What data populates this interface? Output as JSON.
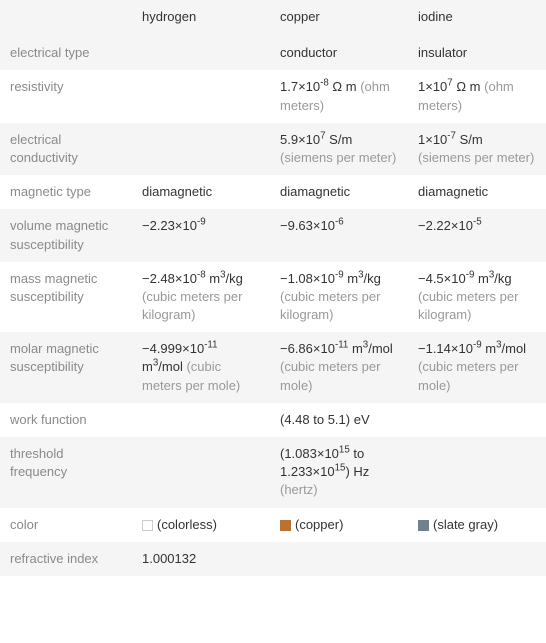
{
  "columns": [
    "",
    "hydrogen",
    "copper",
    "iodine"
  ],
  "rows": [
    {
      "label": "electrical type",
      "hydrogen": {
        "value": "",
        "unit": ""
      },
      "copper": {
        "value": "conductor",
        "unit": ""
      },
      "iodine": {
        "value": "insulator",
        "unit": ""
      }
    },
    {
      "label": "resistivity",
      "hydrogen": {
        "value": "",
        "unit": ""
      },
      "copper": {
        "value": "1.7×10⁻⁸ Ω m",
        "unit": "(ohm meters)"
      },
      "iodine": {
        "value": "1×10⁷ Ω m",
        "unit": "(ohm meters)"
      }
    },
    {
      "label": "electrical conductivity",
      "hydrogen": {
        "value": "",
        "unit": ""
      },
      "copper": {
        "value": "5.9×10⁷ S/m",
        "unit": "(siemens per meter)"
      },
      "iodine": {
        "value": "1×10⁻⁷ S/m",
        "unit": "(siemens per meter)"
      }
    },
    {
      "label": "magnetic type",
      "hydrogen": {
        "value": "diamagnetic",
        "unit": ""
      },
      "copper": {
        "value": "diamagnetic",
        "unit": ""
      },
      "iodine": {
        "value": "diamagnetic",
        "unit": ""
      }
    },
    {
      "label": "volume magnetic susceptibility",
      "hydrogen": {
        "value": "−2.23×10⁻⁹",
        "unit": ""
      },
      "copper": {
        "value": "−9.63×10⁻⁶",
        "unit": ""
      },
      "iodine": {
        "value": "−2.22×10⁻⁵",
        "unit": ""
      }
    },
    {
      "label": "mass magnetic susceptibility",
      "hydrogen": {
        "value": "−2.48×10⁻⁸ m³/kg",
        "unit": "(cubic meters per kilogram)"
      },
      "copper": {
        "value": "−1.08×10⁻⁹ m³/kg",
        "unit": "(cubic meters per kilogram)"
      },
      "iodine": {
        "value": "−4.5×10⁻⁹ m³/kg",
        "unit": "(cubic meters per kilogram)"
      }
    },
    {
      "label": "molar magnetic susceptibility",
      "hydrogen": {
        "value": "−4.999×10⁻¹¹ m³/mol",
        "unit": "(cubic meters per mole)"
      },
      "copper": {
        "value": "−6.86×10⁻¹¹ m³/mol",
        "unit": "(cubic meters per mole)"
      },
      "iodine": {
        "value": "−1.14×10⁻⁹ m³/mol",
        "unit": "(cubic meters per mole)"
      }
    },
    {
      "label": "work function",
      "hydrogen": {
        "value": "",
        "unit": ""
      },
      "copper": {
        "value": "(4.48 to 5.1) eV",
        "unit": ""
      },
      "iodine": {
        "value": "",
        "unit": ""
      }
    },
    {
      "label": "threshold frequency",
      "hydrogen": {
        "value": "",
        "unit": ""
      },
      "copper": {
        "value": "(1.083×10¹⁵ to 1.233×10¹⁵) Hz",
        "unit": "(hertz)"
      },
      "iodine": {
        "value": "",
        "unit": ""
      }
    },
    {
      "label": "color",
      "hydrogen": {
        "value": "(colorless)",
        "unit": "",
        "swatch": "#ffffff",
        "swatch_border": "#cccccc"
      },
      "copper": {
        "value": "(copper)",
        "unit": "",
        "swatch": "#b87333"
      },
      "iodine": {
        "value": "(slate gray)",
        "unit": "",
        "swatch": "#708090"
      }
    },
    {
      "label": "refractive index",
      "hydrogen": {
        "value": "1.000132",
        "unit": ""
      },
      "copper": {
        "value": "",
        "unit": ""
      },
      "iodine": {
        "value": "",
        "unit": ""
      }
    }
  ],
  "colors": {
    "row_label": "#8a8a8a",
    "value": "#333333",
    "unit": "#999999",
    "bg_odd": "#f5f5f5",
    "bg_even": "#ffffff"
  },
  "superscript_map": {
    "⁻": "-",
    "⁰": "0",
    "¹": "1",
    "²": "2",
    "³": "3",
    "⁴": "4",
    "⁵": "5",
    "⁶": "6",
    "⁷": "7",
    "⁸": "8",
    "⁹": "9"
  }
}
